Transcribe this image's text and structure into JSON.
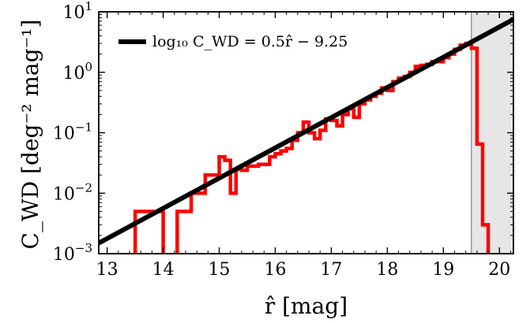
{
  "chart_data": {
    "type": "line",
    "xlabel": "r̂ [mag]",
    "ylabel": "C_WD [deg⁻² mag⁻¹]",
    "xlim": [
      12.85,
      20.25
    ],
    "ylim": [
      0.001,
      10
    ],
    "yscale": "log",
    "x_ticks": [
      13,
      14,
      15,
      16,
      17,
      18,
      19,
      20
    ],
    "x_tick_labels": [
      "13",
      "14",
      "15",
      "16",
      "17",
      "18",
      "19",
      "20"
    ],
    "y_ticks": [
      0.001,
      0.01,
      0.1,
      1,
      10
    ],
    "y_tick_labels": [
      {
        "base": "10",
        "exp": "−3"
      },
      {
        "base": "10",
        "exp": "−2"
      },
      {
        "base": "10",
        "exp": "−1"
      },
      {
        "base": "10",
        "exp": "0"
      },
      {
        "base": "10",
        "exp": "1"
      }
    ],
    "legend": {
      "position": "top-left",
      "label": "log₁₀ C_WD = 0.5r̂ − 9.25"
    },
    "shaded_region": {
      "x_from": 19.5,
      "x_to": 20.25,
      "color": "#e6e6e6"
    },
    "fit_line": {
      "name": "log₁₀ C_WD = 0.5r̂ − 9.25",
      "slope": 0.5,
      "intercept": -9.25,
      "color": "#000000"
    },
    "histogram": {
      "color": "#ff0000",
      "bin_edges": [
        13.5,
        14.0,
        14.25,
        14.5,
        14.75,
        15.0,
        15.1,
        15.2,
        15.3,
        15.4,
        15.5,
        15.6,
        15.7,
        15.8,
        15.9,
        16.0,
        16.1,
        16.2,
        16.3,
        16.4,
        16.5,
        16.6,
        16.7,
        16.8,
        16.9,
        17.0,
        17.1,
        17.2,
        17.3,
        17.4,
        17.5,
        17.6,
        17.7,
        17.8,
        17.9,
        18.0,
        18.1,
        18.2,
        18.3,
        18.4,
        18.5,
        18.6,
        18.7,
        18.8,
        18.9,
        19.0,
        19.1,
        19.2,
        19.3,
        19.4,
        19.5,
        19.6,
        19.7,
        19.8
      ],
      "values": [
        0.005,
        0.0008,
        0.005,
        0.01,
        0.02,
        0.04,
        0.035,
        0.01,
        0.025,
        0.024,
        0.028,
        0.028,
        0.03,
        0.03,
        0.04,
        0.045,
        0.05,
        0.055,
        0.075,
        0.1,
        0.15,
        0.1,
        0.08,
        0.11,
        0.17,
        0.16,
        0.13,
        0.2,
        0.25,
        0.18,
        0.3,
        0.35,
        0.4,
        0.45,
        0.55,
        0.5,
        0.7,
        0.8,
        0.85,
        1.0,
        1.25,
        1.3,
        1.35,
        1.5,
        1.5,
        1.75,
        2.0,
        2.4,
        2.8,
        3.0,
        2.5,
        0.065,
        0.003
      ]
    }
  }
}
